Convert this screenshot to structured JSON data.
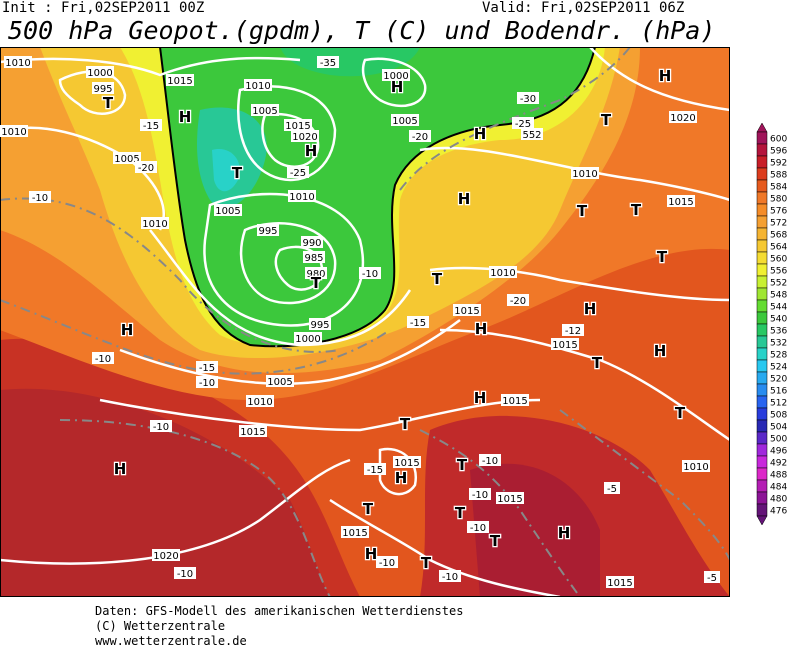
{
  "header": {
    "init": "Init : Fri,02SEP2011 00Z",
    "valid": "Valid: Fri,02SEP2011 06Z",
    "title": "500 hPa Geopot.(gpdm), T (C) und Bodendr. (hPa)"
  },
  "legend": {
    "levels": [
      600,
      596,
      592,
      588,
      584,
      580,
      576,
      572,
      568,
      564,
      560,
      556,
      552,
      548,
      544,
      540,
      536,
      532,
      528,
      524,
      520,
      516,
      512,
      508,
      504,
      500,
      496,
      492,
      488,
      484,
      480,
      476
    ],
    "colors": [
      "#a0145a",
      "#b4143c",
      "#c81e28",
      "#dc3c1e",
      "#e65a1e",
      "#f07828",
      "#f58c28",
      "#f5a032",
      "#f5b432",
      "#f5c832",
      "#f5dc32",
      "#f0f032",
      "#c8f032",
      "#a0e632",
      "#64dc32",
      "#3cc83c",
      "#28c864",
      "#28c896",
      "#28d2c8",
      "#28c8f0",
      "#28aaf0",
      "#288cf0",
      "#2864f0",
      "#283cdc",
      "#2828b4",
      "#5a28c8",
      "#a028dc",
      "#c828dc",
      "#dc28c8",
      "#b41eb4",
      "#8c1496",
      "#641478"
    ]
  },
  "map": {
    "labels": [
      "1010",
      "1000",
      "995",
      "T",
      "1015",
      "1010",
      "1000",
      "H",
      "1005",
      "1015",
      "1020",
      "H",
      "1005",
      "H",
      "H",
      "1020",
      "T",
      "1010",
      "1015",
      "1005",
      "1010",
      "H",
      "T",
      "1010",
      "1005",
      "995",
      "990",
      "985",
      "980",
      "T",
      "995",
      "1000",
      "1010",
      "H",
      "1005",
      "1010",
      "1015",
      "H",
      "1020",
      "T",
      "1015",
      "H",
      "H",
      "T",
      "H",
      "1015",
      "1010",
      "1015",
      "H",
      "T",
      "1015",
      "H",
      "T",
      "T",
      "1015",
      "H",
      "T",
      "1015",
      "H",
      "T",
      "T",
      "1010",
      "1015",
      "T",
      "T",
      "T",
      "T",
      "H",
      "-35",
      "-30",
      "-25",
      "-20",
      "-15",
      "-20",
      "-25",
      "-10",
      "-10",
      "-15",
      "-20",
      "-10",
      "-15",
      "-10",
      "-10",
      "-15",
      "-10",
      "-10",
      "-10",
      "-10",
      "-10",
      "-5",
      "-10",
      "-5",
      "-12",
      "552"
    ]
  },
  "footer": {
    "line1": "Daten: GFS-Modell des amerikanischen Wetterdienstes",
    "line2": "(C) Wetterzentrale",
    "line3": "www.wetterzentrale.de"
  }
}
